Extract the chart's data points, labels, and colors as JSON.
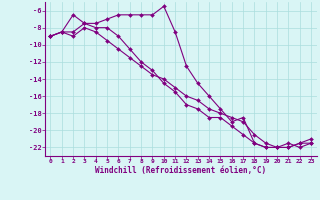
{
  "line1_x": [
    0,
    1,
    2,
    3,
    4,
    5,
    6,
    7,
    8,
    9,
    10,
    11,
    12,
    13,
    14,
    15,
    16,
    17,
    18,
    19,
    20,
    21,
    22,
    23
  ],
  "line1_y": [
    -9.0,
    -8.5,
    -6.5,
    -7.5,
    -7.5,
    -7.0,
    -6.5,
    -6.5,
    -6.5,
    -6.5,
    -5.5,
    -8.5,
    -12.5,
    -14.5,
    -16.0,
    -17.5,
    -19.0,
    -18.5,
    -21.5,
    -22.0,
    -22.0,
    -22.0,
    -21.5,
    -21.0
  ],
  "line2_x": [
    0,
    1,
    2,
    3,
    4,
    5,
    6,
    7,
    8,
    9,
    10,
    11,
    12,
    13,
    14,
    15,
    16,
    17,
    18,
    19,
    20,
    21,
    22,
    23
  ],
  "line2_y": [
    -9.0,
    -8.5,
    -9.0,
    -8.0,
    -8.5,
    -9.5,
    -10.5,
    -11.5,
    -12.5,
    -13.5,
    -14.0,
    -15.0,
    -16.0,
    -16.5,
    -17.5,
    -18.0,
    -18.5,
    -19.0,
    -20.5,
    -21.5,
    -22.0,
    -22.0,
    -21.5,
    -21.5
  ],
  "line3_x": [
    0,
    1,
    2,
    3,
    4,
    5,
    6,
    7,
    8,
    9,
    10,
    11,
    12,
    13,
    14,
    15,
    16,
    17,
    18,
    19,
    20,
    21,
    22,
    23
  ],
  "line3_y": [
    -9.0,
    -8.5,
    -8.5,
    -7.5,
    -8.0,
    -8.0,
    -9.0,
    -10.5,
    -12.0,
    -13.0,
    -14.5,
    -15.5,
    -17.0,
    -17.5,
    -18.5,
    -18.5,
    -19.5,
    -20.5,
    -21.5,
    -22.0,
    -22.0,
    -21.5,
    -22.0,
    -21.5
  ],
  "line_color": "#800080",
  "marker": "D",
  "marker_size": 2,
  "background_color": "#d9f5f5",
  "grid_color": "#aadddd",
  "xlabel": "Windchill (Refroidissement éolien,°C)",
  "xlim": [
    -0.5,
    23.5
  ],
  "ylim": [
    -23.0,
    -5.0
  ],
  "xticks": [
    0,
    1,
    2,
    3,
    4,
    5,
    6,
    7,
    8,
    9,
    10,
    11,
    12,
    13,
    14,
    15,
    16,
    17,
    18,
    19,
    20,
    21,
    22,
    23
  ],
  "yticks": [
    -6,
    -8,
    -10,
    -12,
    -14,
    -16,
    -18,
    -20,
    -22
  ]
}
